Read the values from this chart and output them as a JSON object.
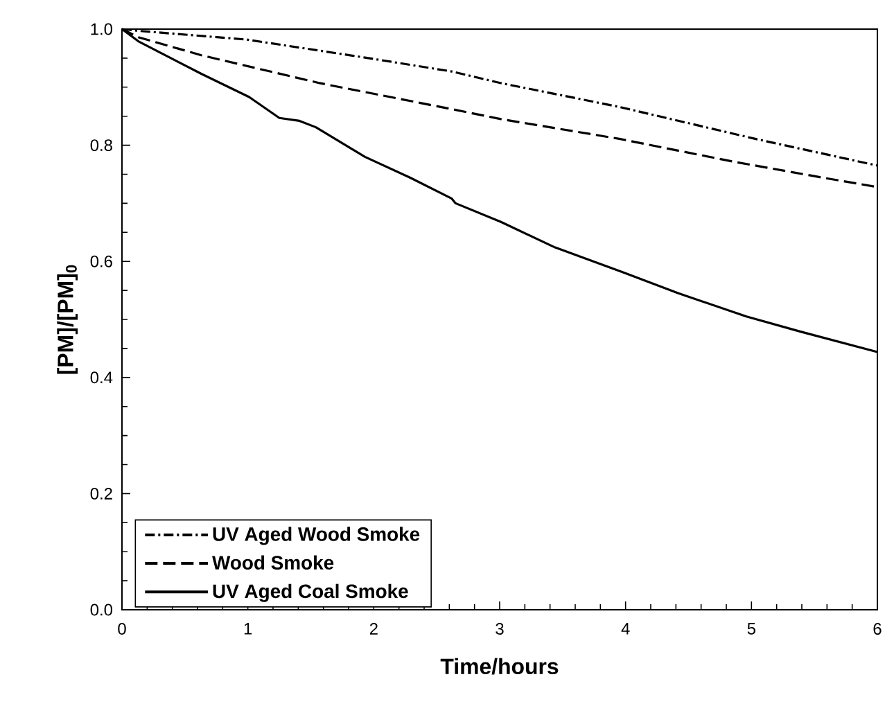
{
  "chart_data": {
    "type": "line",
    "xlabel": "Time/hours",
    "ylabel": "[PM]/[PM]$_{0}$",
    "xlim": [
      0,
      6
    ],
    "ylim": [
      0,
      1.0
    ],
    "xticks": [
      0,
      1,
      2,
      3,
      4,
      5,
      6
    ],
    "yticks": [
      {
        "value": 0,
        "label": "0.0"
      },
      {
        "value": 0.2,
        "label": "0.2"
      },
      {
        "value": 0.4,
        "label": "0.4"
      },
      {
        "value": 0.6,
        "label": "0.6"
      },
      {
        "value": 0.8,
        "label": "0.8"
      },
      {
        "value": 1.0,
        "label": "1.0"
      }
    ],
    "grid": false,
    "legend": "bottom left",
    "marker": "none",
    "series": [
      {
        "name": "UV Aged Wood Smoke",
        "color": "#000000",
        "line_style": "dashdot",
        "x": [
          0,
          0.13,
          0.99,
          1.93,
          2.62,
          3.01,
          3.95,
          5.03,
          6.0
        ],
        "values": [
          1.0,
          0.997,
          0.982,
          0.951,
          0.927,
          0.907,
          0.866,
          0.811,
          0.765
        ]
      },
      {
        "name": "Wood Smoke",
        "color": "#000000",
        "line_style": "dashed",
        "x": [
          0,
          0.13,
          0.63,
          1.57,
          2.6,
          3.01,
          3.95,
          4.85,
          5.57,
          6.0
        ],
        "values": [
          1.0,
          0.986,
          0.955,
          0.907,
          0.863,
          0.845,
          0.811,
          0.772,
          0.744,
          0.728
        ]
      },
      {
        "name": "UV Aged Coal Smoke",
        "color": "#000000",
        "line_style": "solid",
        "x": [
          0,
          0.13,
          0.63,
          1.01,
          1.25,
          1.41,
          1.54,
          1.93,
          2.29,
          2.62,
          2.65,
          3.01,
          3.44,
          3.98,
          4.42,
          4.96,
          5.39,
          6.0
        ],
        "values": [
          1.0,
          0.979,
          0.923,
          0.883,
          0.847,
          0.842,
          0.831,
          0.78,
          0.744,
          0.708,
          0.7,
          0.668,
          0.624,
          0.581,
          0.545,
          0.505,
          0.479,
          0.444
        ]
      }
    ]
  }
}
